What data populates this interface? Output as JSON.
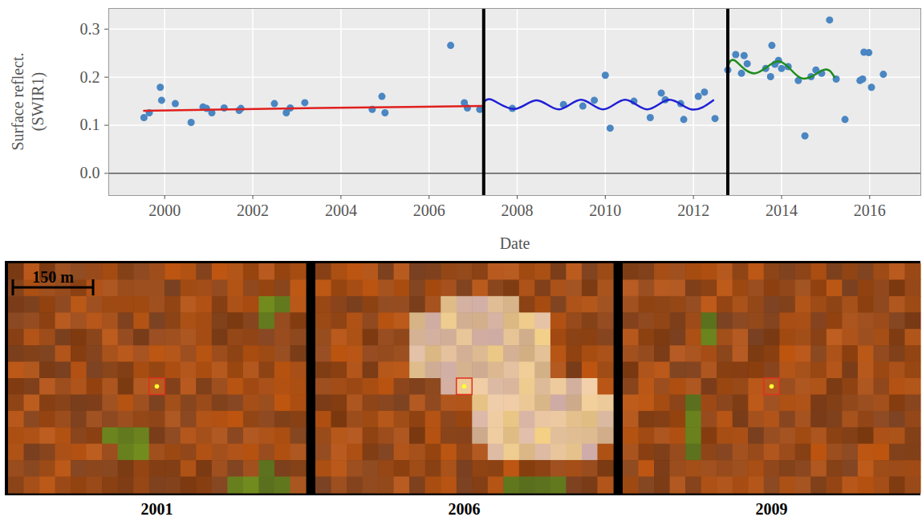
{
  "chart_data": {
    "type": "scatter",
    "xlabel": "Date",
    "ylabel": "Surface reflect. (SWIR1)",
    "xlim": [
      1998.73,
      2017.16
    ],
    "ylim": [
      -0.046,
      0.343
    ],
    "xticks": [
      2000,
      2002,
      2004,
      2006,
      2008,
      2010,
      2012,
      2014,
      2016
    ],
    "yticks": [
      {
        "value": 0,
        "label": "0.0"
      },
      0.1,
      0.2,
      0.3
    ],
    "grid": true,
    "baseline": 0,
    "breaks": [
      2007.24,
      2012.78
    ],
    "series": [
      {
        "type": "scatter",
        "marker": "circle",
        "color": "#4a86c2",
        "x": [
          1999.53,
          1999.65,
          1999.9,
          1999.93,
          2000.24,
          2000.6,
          2000.87,
          2000.95,
          2001.07,
          2001.35,
          2001.69,
          2001.73,
          2002.49,
          2002.76,
          2002.85,
          2003.18,
          2004.71,
          2004.93,
          2005.0,
          2006.49,
          2006.8,
          2006.87,
          2007.15,
          2007.89,
          2009.05,
          2009.49,
          2009.75,
          2010.0,
          2010.11,
          2010.65,
          2011.02,
          2011.27,
          2011.36,
          2011.71,
          2011.78,
          2012.11,
          2012.25,
          2012.49,
          2012.78,
          2012.96,
          2013.09,
          2013.15,
          2013.22,
          2013.64,
          2013.75,
          2013.78,
          2013.85,
          2013.93,
          2014.0,
          2014.15,
          2014.38,
          2014.53,
          2014.67,
          2014.78,
          2014.91,
          2015.09,
          2015.24,
          2015.44,
          2015.78,
          2015.84,
          2015.87,
          2015.98,
          2016.04,
          2016.31
        ],
        "values": [
          0.116,
          0.126,
          0.179,
          0.152,
          0.145,
          0.106,
          0.138,
          0.135,
          0.126,
          0.136,
          0.131,
          0.135,
          0.145,
          0.126,
          0.136,
          0.147,
          0.133,
          0.16,
          0.126,
          0.266,
          0.147,
          0.136,
          0.133,
          0.135,
          0.143,
          0.14,
          0.152,
          0.204,
          0.094,
          0.15,
          0.116,
          0.167,
          0.153,
          0.145,
          0.112,
          0.16,
          0.169,
          0.114,
          0.215,
          0.247,
          0.208,
          0.245,
          0.228,
          0.218,
          0.201,
          0.266,
          0.227,
          0.235,
          0.218,
          0.222,
          0.193,
          0.078,
          0.201,
          0.215,
          0.208,
          0.319,
          0.196,
          0.112,
          0.193,
          0.196,
          0.252,
          0.251,
          0.179,
          0.206
        ]
      },
      {
        "type": "line",
        "line_style": "solid",
        "color": "#e0201e",
        "x": [
          1999.53,
          2001.5,
          2003.5,
          2005.5,
          2007.2
        ],
        "values": [
          0.13,
          0.133,
          0.136,
          0.138,
          0.14
        ]
      },
      {
        "type": "line",
        "line_style": "solid",
        "color": "#1f1fd6",
        "x": [
          2007.24,
          2007.45,
          2007.95,
          2008.45,
          2008.95,
          2009.45,
          2009.95,
          2010.45,
          2010.95,
          2011.45,
          2011.95,
          2012.45
        ],
        "values": [
          0.148,
          0.152,
          0.134,
          0.152,
          0.133,
          0.153,
          0.133,
          0.153,
          0.133,
          0.153,
          0.133,
          0.152
        ]
      },
      {
        "type": "line",
        "line_style": "solid",
        "color": "#1e8c1e",
        "x": [
          2012.78,
          2012.95,
          2013.4,
          2013.95,
          2014.45,
          2014.95,
          2015.2
        ],
        "values": [
          0.222,
          0.234,
          0.208,
          0.233,
          0.198,
          0.215,
          0.2
        ]
      }
    ]
  },
  "image_panels": {
    "scale_bar": "150 m",
    "titles": [
      "2001",
      "2006",
      "2009"
    ]
  }
}
